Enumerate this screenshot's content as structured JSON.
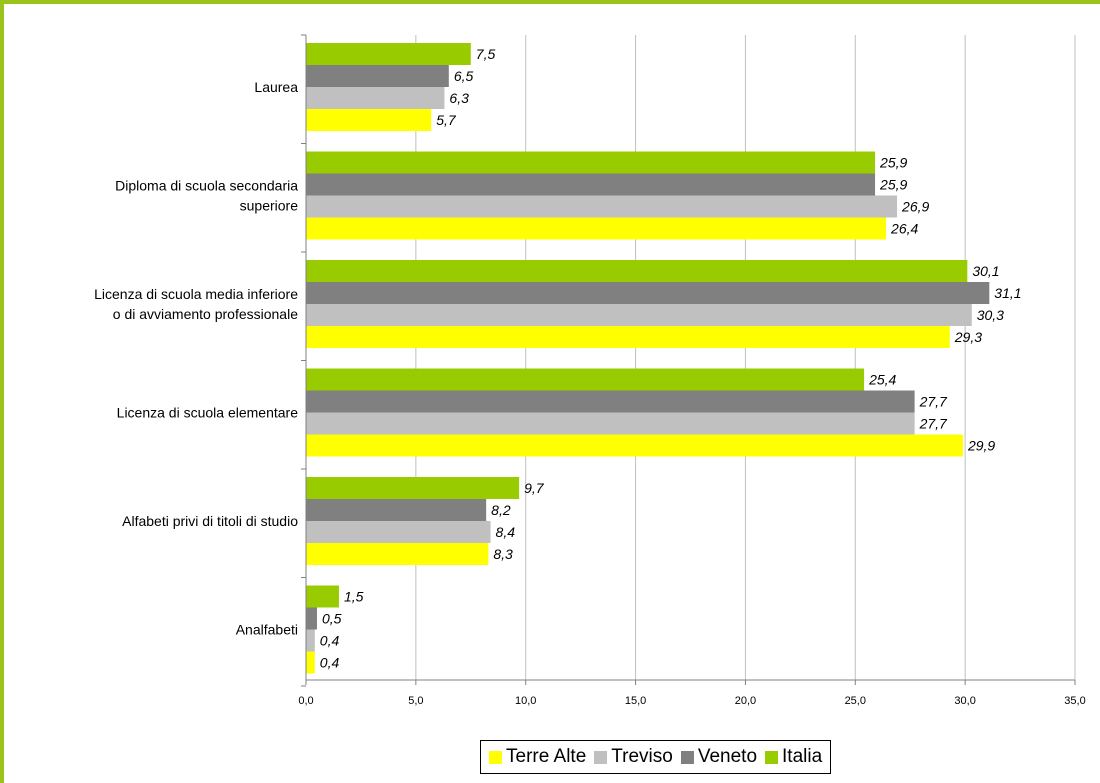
{
  "chart_data": {
    "type": "bar",
    "orientation": "horizontal",
    "categories": [
      [
        "Laurea"
      ],
      [
        "Diploma di scuola secondaria",
        "superiore"
      ],
      [
        "Licenza di scuola media inferiore",
        "o di avviamento professionale"
      ],
      [
        "Licenza di scuola elementare"
      ],
      [
        "Alfabeti privi di titoli di studio"
      ],
      [
        "Analfabeti"
      ]
    ],
    "series": [
      {
        "name": "Terre Alte",
        "color": "#ffff00",
        "values": [
          5.7,
          26.4,
          29.3,
          29.9,
          8.3,
          0.4
        ]
      },
      {
        "name": "Treviso",
        "color": "#c0c0c0",
        "values": [
          6.3,
          26.9,
          30.3,
          27.7,
          8.4,
          0.4
        ]
      },
      {
        "name": "Veneto",
        "color": "#808080",
        "values": [
          6.5,
          25.9,
          31.1,
          27.7,
          8.2,
          0.5
        ]
      },
      {
        "name": "Italia",
        "color": "#99cc00",
        "values": [
          7.5,
          25.9,
          30.1,
          25.4,
          9.7,
          1.5
        ]
      }
    ],
    "xlim": [
      0,
      35
    ],
    "xticks": [
      "0,0",
      "5,0",
      "10,0",
      "15,0",
      "20,0",
      "25,0",
      "30,0",
      "35,0"
    ],
    "grid": true,
    "legend_position": "bottom",
    "decimal_separator": ","
  },
  "frame_color": "#9ac31c",
  "grid_color": "#c0c0c0"
}
